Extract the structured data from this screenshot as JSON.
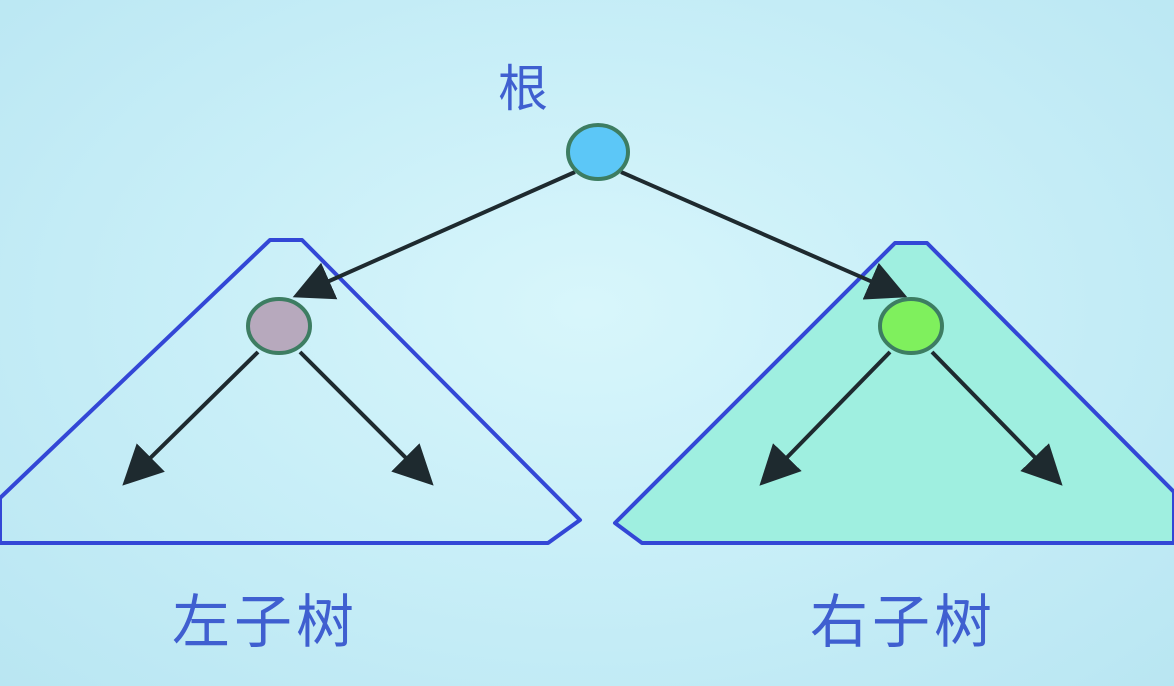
{
  "labels": {
    "root": "根",
    "left_subtree": "左子树",
    "right_subtree": "右子树"
  },
  "colors": {
    "background": "#c9eff8",
    "outline_blue": "#3347d6",
    "arrow": "#1e2a2f",
    "root_node": "#5cc7f7",
    "left_child_node": "#b7a9bd",
    "right_child_node": "#7ff05d",
    "right_subtree_fill": "#9fefe0",
    "node_stroke": "#3d7d62",
    "text": "#3f5fd0"
  }
}
